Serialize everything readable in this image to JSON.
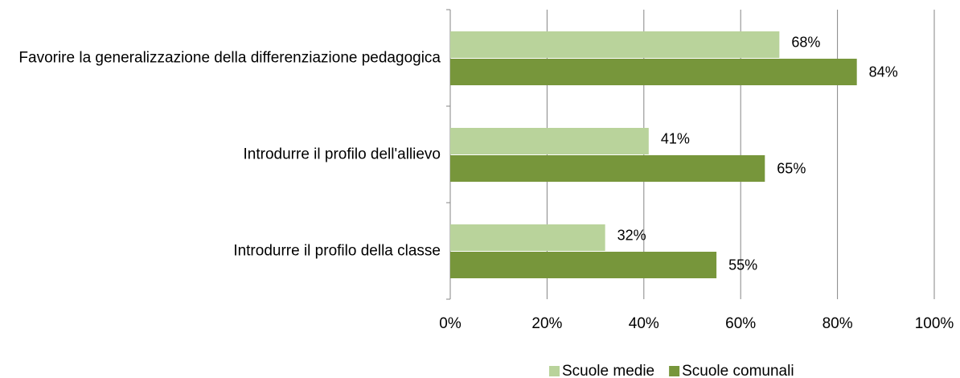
{
  "chart_data": {
    "type": "bar",
    "orientation": "horizontal",
    "categories": [
      "Favorire la generalizzazione della differenziazione pedagogica",
      "Introdurre il profilo dell'allievo",
      "Introdurre il profilo della classe"
    ],
    "series": [
      {
        "name": "Scuole medie",
        "color": "#b9d39b",
        "values": [
          68,
          41,
          32
        ],
        "value_labels": [
          "68%",
          "41%",
          "32%"
        ]
      },
      {
        "name": "Scuole comunali",
        "color": "#77963b",
        "values": [
          84,
          65,
          55
        ],
        "value_labels": [
          "84%",
          "65%",
          "55%"
        ]
      }
    ],
    "xlim": [
      0,
      100
    ],
    "xticks": [
      {
        "value": 0,
        "label": "0%"
      },
      {
        "value": 20,
        "label": "20%"
      },
      {
        "value": 40,
        "label": "40%"
      },
      {
        "value": 60,
        "label": "60%"
      },
      {
        "value": 80,
        "label": "80%"
      },
      {
        "value": 100,
        "label": "100%"
      }
    ],
    "grid": true,
    "legend": "bottom"
  }
}
